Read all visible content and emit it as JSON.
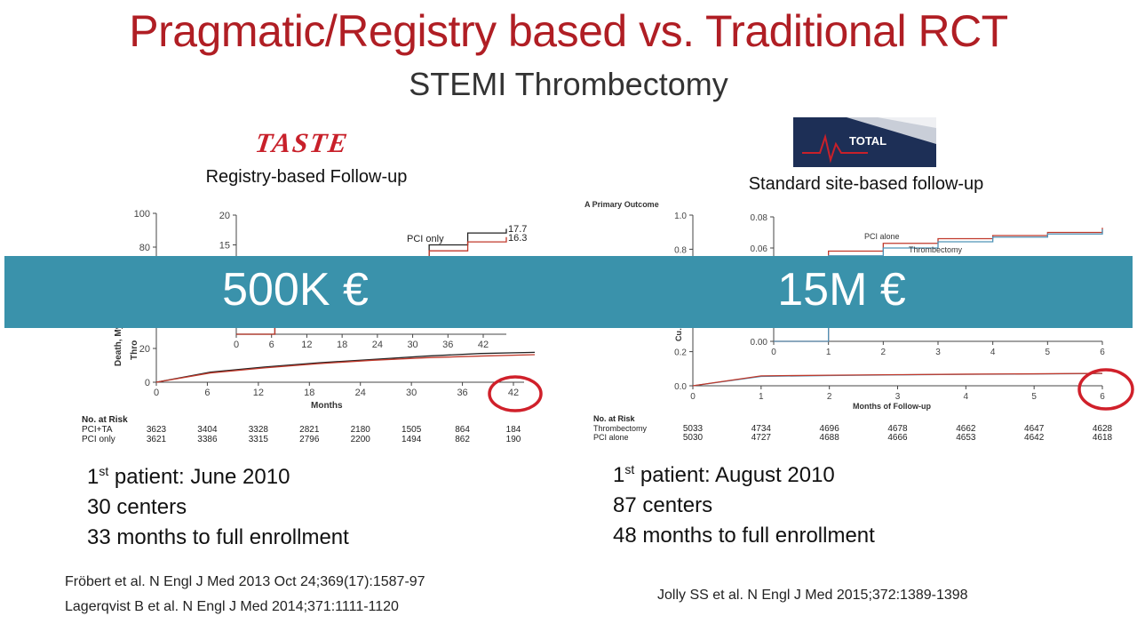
{
  "slide": {
    "title": "Pragmatic/Registry based vs. Traditional RCT",
    "subtitle": "STEMI Thrombectomy"
  },
  "left": {
    "logo_text": "TASTE",
    "subtitle": "Registry-based Follow-up",
    "banner": "500K €",
    "first_patient_prefix": "1",
    "first_patient_sup": "st",
    "first_patient_rest": " patient: June 2010",
    "centers": "30 centers",
    "enrollment": "33 months to full enrollment",
    "refs": [
      "Fröbert et al. N Engl J Med 2013 Oct 24;369(17):1587-97",
      "Lagerqvist B et al. N Engl J Med 2014;371:1111-1120"
    ]
  },
  "right": {
    "logo_text": "TOTAL",
    "subtitle": "Standard site-based follow-up",
    "banner": "15M €",
    "first_patient_prefix": "1",
    "first_patient_sup": "st",
    "first_patient_rest": " patient: August 2010",
    "centers": "87 centers",
    "enrollment": "48 months to full enrollment",
    "refs": [
      "Jolly SS et al. N Engl J Med 2015;372:1389-1398"
    ]
  },
  "colors": {
    "title": "#b01e24",
    "banner": "#3a92ab",
    "circle": "#d0202a",
    "series_dark": "#222222",
    "series_red": "#c0392b",
    "series_blue": "#4f93b8"
  },
  "chart_data": [
    {
      "type": "line",
      "panel": "TASTE main",
      "xlabel": "Months",
      "ylabel": "Death, My… Stent Thro…",
      "ylim": [
        0,
        100
      ],
      "yticks": [
        0,
        20,
        80,
        100
      ],
      "x": [
        0,
        6,
        12,
        18,
        24,
        30,
        36,
        42
      ],
      "series": [
        {
          "name": "PCI+TA",
          "values": [
            0,
            6,
            9,
            11.5,
            13.5,
            15.5,
            17,
            17.7
          ]
        },
        {
          "name": "PCI only",
          "values": [
            0,
            5.5,
            8.5,
            11,
            13,
            14.5,
            15.5,
            16.3
          ]
        }
      ],
      "risk_table": {
        "label": "No. at Risk",
        "rows": [
          {
            "name": "PCI+TA",
            "values": [
              "3623",
              "3404",
              "3328",
              "2821",
              "2180",
              "1505",
              "864",
              "184"
            ]
          },
          {
            "name": "PCI only",
            "values": [
              "3621",
              "3386",
              "3315",
              "2796",
              "2200",
              "1494",
              "862",
              "190"
            ]
          }
        ]
      }
    },
    {
      "type": "line",
      "panel": "TASTE inset",
      "ylim": [
        0,
        20
      ],
      "yticks": [
        15,
        20
      ],
      "x": [
        0,
        6,
        12,
        18,
        24,
        30,
        36,
        42
      ],
      "series": [
        {
          "name": "PCI only",
          "values": [
            0,
            6,
            9,
            11,
            13,
            15,
            17,
            17.7
          ]
        },
        {
          "name": "PCI+TA",
          "values": [
            0,
            5.5,
            8.5,
            10.5,
            12.5,
            14,
            15.5,
            16.3
          ]
        }
      ],
      "end_labels": [
        "17.7",
        "16.3"
      ],
      "annotation": "PCI only"
    },
    {
      "type": "line",
      "panel": "TOTAL main",
      "title": "A  Primary Outcome",
      "xlabel": "Months of Follow-up",
      "ylabel": "Cu…",
      "ylim": [
        0,
        1.0
      ],
      "yticks": [
        "0.0",
        "0.2",
        "0.8",
        "1.0"
      ],
      "x": [
        0,
        1,
        2,
        3,
        4,
        5,
        6
      ],
      "series": [
        {
          "name": "Thrombectomy",
          "values": [
            0,
            0.055,
            0.06,
            0.064,
            0.067,
            0.069,
            0.072
          ]
        },
        {
          "name": "PCI alone",
          "values": [
            0,
            0.058,
            0.062,
            0.065,
            0.068,
            0.07,
            0.073
          ]
        }
      ],
      "risk_table": {
        "label": "No. at Risk",
        "rows": [
          {
            "name": "Thrombectomy",
            "values": [
              "5033",
              "4734",
              "4696",
              "4678",
              "4662",
              "4647",
              "4628"
            ]
          },
          {
            "name": "PCI alone",
            "values": [
              "5030",
              "4727",
              "4688",
              "4666",
              "4653",
              "4642",
              "4618"
            ]
          }
        ]
      }
    },
    {
      "type": "line",
      "panel": "TOTAL inset",
      "ylim": [
        0,
        0.08
      ],
      "yticks": [
        "0.00",
        "0.06",
        "0.08"
      ],
      "x": [
        0,
        1,
        2,
        3,
        4,
        5,
        6
      ],
      "series": [
        {
          "name": "PCI alone",
          "values": [
            0,
            0.058,
            0.063,
            0.066,
            0.068,
            0.07,
            0.073
          ]
        },
        {
          "name": "Thrombectomy",
          "values": [
            0,
            0.055,
            0.06,
            0.064,
            0.067,
            0.069,
            0.072
          ]
        }
      ],
      "annotations": [
        "PCI alone",
        "Thrombectomy"
      ]
    }
  ]
}
